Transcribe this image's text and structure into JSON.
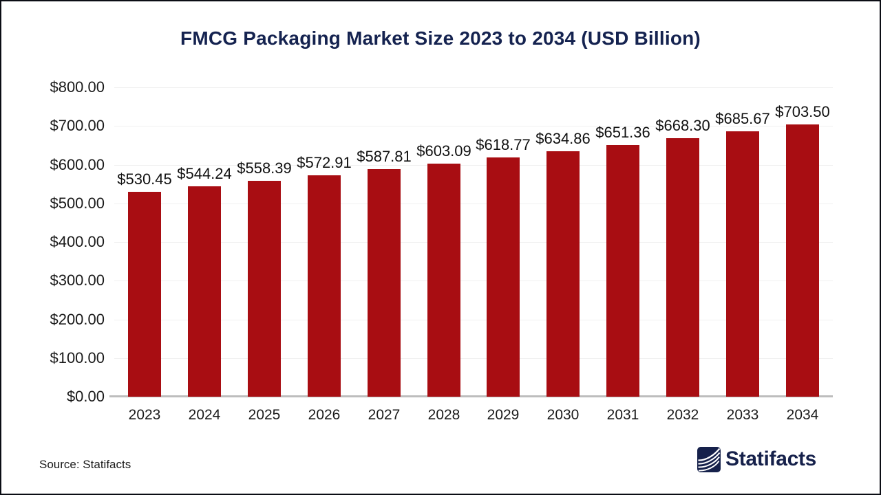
{
  "page": {
    "title": "FMCG Packaging Market Size 2023 to 2034 (USD Billion)",
    "source_label": "Source: Statifacts",
    "brand": {
      "name": "Statifacts",
      "logo_icon": "statifacts-waves-icon"
    }
  },
  "colors": {
    "bar": "#a80d12",
    "title_navy": "#152350",
    "brand_navy": "#16214b",
    "axis_line_gray": "#bdbdbd",
    "gridline_gray": "#f0f0f0",
    "text_black": "#1a1a1a"
  },
  "chart_data": {
    "type": "bar",
    "title": "FMCG Packaging Market Size 2023 to 2034 (USD Billion)",
    "unit": "USD Billion",
    "categories": [
      "2023",
      "2024",
      "2025",
      "2026",
      "2027",
      "2028",
      "2029",
      "2030",
      "2031",
      "2032",
      "2033",
      "2034"
    ],
    "values": [
      530.45,
      544.24,
      558.39,
      572.91,
      587.81,
      603.09,
      618.77,
      634.86,
      651.36,
      668.3,
      685.67,
      703.5
    ],
    "data_labels": [
      "$530.45",
      "$544.24",
      "$558.39",
      "$572.91",
      "$587.81",
      "$603.09",
      "$618.77",
      "$634.86",
      "$651.36",
      "$668.30",
      "$685.67",
      "$703.50"
    ],
    "xlabel": "",
    "ylabel": "",
    "ylim": [
      0,
      800
    ],
    "ytick_step": 100,
    "ytick_labels": [
      "$0.00",
      "$100.00",
      "$200.00",
      "$300.00",
      "$400.00",
      "$500.00",
      "$600.00",
      "$700.00",
      "$800.00"
    ],
    "grid": "horizontal",
    "legend": "none",
    "bar_color": "#a80d12"
  }
}
